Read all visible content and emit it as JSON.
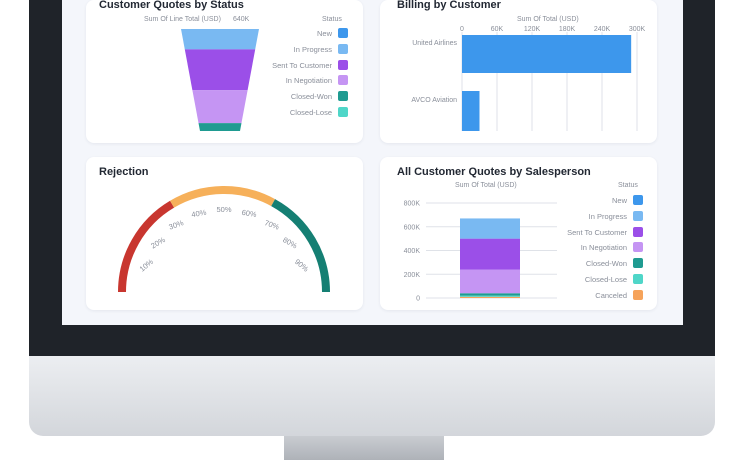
{
  "colors": {
    "new": "#3d97ec",
    "in_progress": "#79b9f2",
    "sent_to_customer": "#9b4fe8",
    "in_negotiation": "#c595f3",
    "closed_won": "#1f9b91",
    "closed_lose": "#4fd6c8",
    "canceled": "#f6a35a",
    "gauge_red": "#c8362f",
    "gauge_orange": "#f6b05a",
    "gauge_teal": "#157f73"
  },
  "quotes_by_status": {
    "title": "Customer Quotes by Status",
    "measure": "Sum Of Line Total (USD)",
    "max_label": "640K",
    "legend_title": "Status",
    "legend": [
      "New",
      "In Progress",
      "Sent To Customer",
      "In Negotiation",
      "Closed-Won",
      "Closed-Lose"
    ]
  },
  "billing": {
    "title": "Billing by Customer",
    "axis_title": "Sum Of Total (USD)"
  },
  "rejection": {
    "title": "Rejection"
  },
  "salesperson": {
    "title": "All Customer Quotes by Salesperson",
    "axis_title": "Sum Of Total (USD)",
    "legend_title": "Status",
    "legend": [
      "New",
      "In Progress",
      "Sent To Customer",
      "In Negotiation",
      "Closed-Won",
      "Closed-Lose",
      "Canceled"
    ]
  },
  "chart_data": [
    {
      "type": "funnel",
      "title": "Customer Quotes by Status",
      "categories": [
        "In Progress",
        "Sent To Customer",
        "In Negotiation",
        "Closed-Won"
      ],
      "values": [
        130,
        260,
        210,
        50
      ],
      "max": 640
    },
    {
      "type": "bar",
      "orientation": "horizontal",
      "title": "Billing by Customer",
      "xlabel": "Sum Of Total (USD)",
      "categories": [
        "United Airlines",
        "AVCO Aviation"
      ],
      "values": [
        290000,
        30000
      ],
      "xlim": [
        0,
        300000
      ],
      "xticks": [
        "0",
        "60K",
        "120K",
        "180K",
        "240K",
        "300K"
      ]
    },
    {
      "type": "gauge",
      "title": "Rejection",
      "ticks": [
        "10%",
        "20%",
        "30%",
        "40%",
        "50%",
        "60%",
        "70%",
        "80%",
        "90%"
      ],
      "bands": [
        {
          "from": 0,
          "to": 33
        },
        {
          "from": 33,
          "to": 66
        },
        {
          "from": 66,
          "to": 100
        }
      ]
    },
    {
      "type": "bar",
      "stacked": true,
      "title": "All Customer Quotes by Salesperson",
      "ylabel": "Sum Of Total (USD)",
      "ylim": [
        0,
        800000
      ],
      "yticks": [
        "0",
        "200K",
        "400K",
        "600K",
        "800K"
      ],
      "series": [
        {
          "status": "Canceled",
          "value": 10000
        },
        {
          "status": "Closed-Lose",
          "value": 10000
        },
        {
          "status": "Closed-Won",
          "value": 20000
        },
        {
          "status": "In Negotiation",
          "value": 200000
        },
        {
          "status": "Sent To Customer",
          "value": 260000
        },
        {
          "status": "In Progress",
          "value": 170000
        }
      ]
    }
  ]
}
